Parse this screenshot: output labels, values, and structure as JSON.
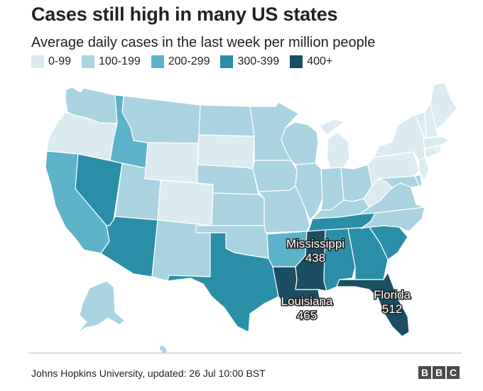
{
  "title": "Cases still high in many US states",
  "subtitle": "Average daily cases in the last week per million people",
  "legend": [
    {
      "label": "0-99",
      "color": "#dcebf0"
    },
    {
      "label": "100-199",
      "color": "#a9d3e1"
    },
    {
      "label": "200-299",
      "color": "#5cb2c9"
    },
    {
      "label": "300-399",
      "color": "#2a8ea7"
    },
    {
      "label": "400+",
      "color": "#1a4e62"
    }
  ],
  "colors": {
    "c0": "#dcebf0",
    "c1": "#a9d3e1",
    "c2": "#5cb2c9",
    "c3": "#2a8ea7",
    "c4": "#1a4e62"
  },
  "states": {
    "WA": "c1",
    "OR": "c0",
    "CA": "c2",
    "NV": "c3",
    "ID": "c2",
    "MT": "c1",
    "WY": "c0",
    "UT": "c1",
    "AZ": "c3",
    "CO": "c0",
    "NM": "c1",
    "ND": "c1",
    "SD": "c0",
    "NE": "c1",
    "KS": "c1",
    "OK": "c1",
    "TX": "c3",
    "MN": "c1",
    "IA": "c1",
    "MO": "c1",
    "AR": "c2",
    "LA": "c4",
    "WI": "c1",
    "IL": "c1",
    "MI": "c0",
    "IN": "c1",
    "OH": "c1",
    "KY": "c1",
    "TN": "c3",
    "MS": "c4",
    "AL": "c3",
    "GA": "c3",
    "FL": "c4",
    "SC": "c3",
    "NC": "c1",
    "VA": "c1",
    "WV": "c0",
    "PA": "c0",
    "NY": "c0",
    "VT": "c0",
    "NH": "c0",
    "ME": "c0",
    "MA": "c0",
    "CT": "c0",
    "RI": "c0",
    "NJ": "c0",
    "DE": "c1",
    "MD": "c1",
    "AK": "c1",
    "HI": "c1"
  },
  "annotations": {
    "mississippi": {
      "name": "Mississippi",
      "value": "438"
    },
    "louisiana": {
      "name": "Louisiana",
      "value": "465"
    },
    "florida": {
      "name": "Florida",
      "value": "512"
    }
  },
  "source": "Johns Hopkins University, updated: 26 Jul 10:00 BST",
  "brand": [
    "B",
    "B",
    "C"
  ]
}
